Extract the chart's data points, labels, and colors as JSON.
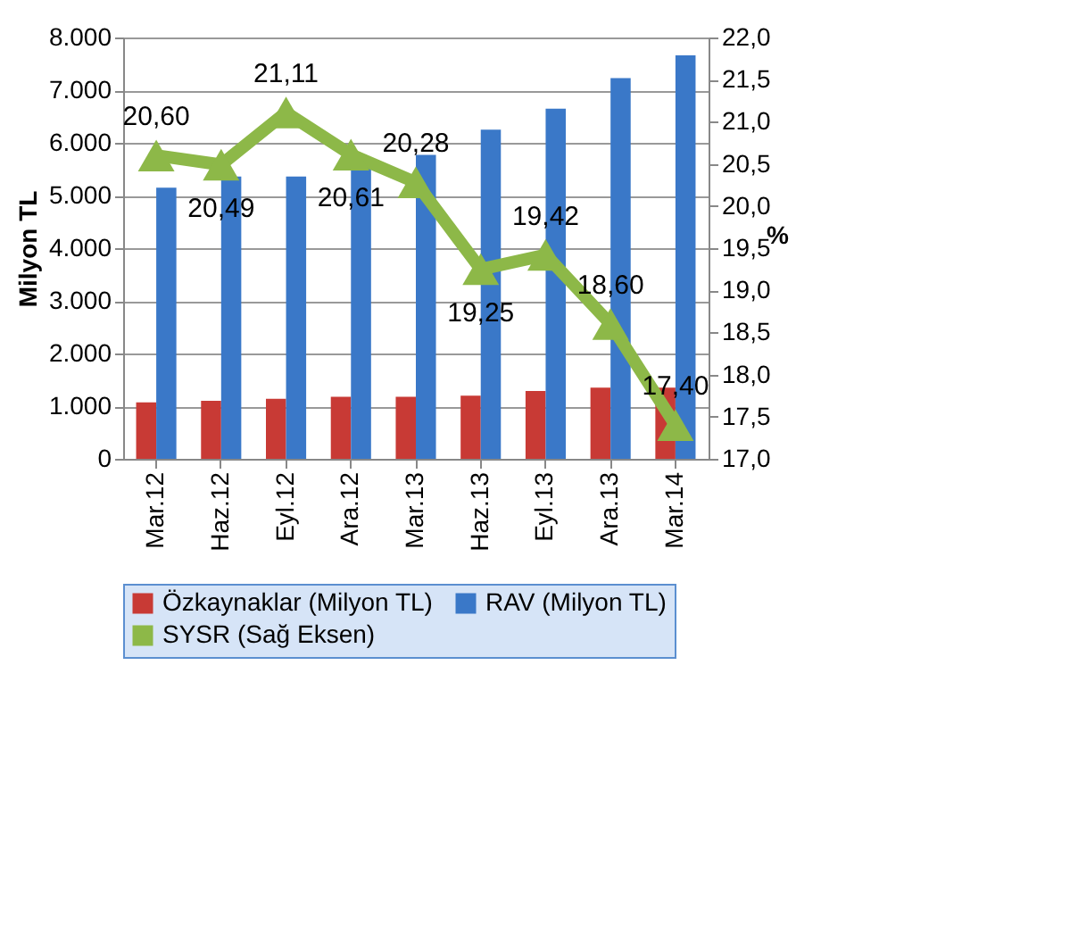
{
  "chart_data": {
    "type": "bar",
    "ylabel": "Milyon TL",
    "y2label": "%",
    "categories": [
      "Mar.12",
      "Haz.12",
      "Eyl.12",
      "Ara.12",
      "Mar.13",
      "Haz.13",
      "Eyl.13",
      "Ara.13",
      "Mar.14"
    ],
    "series": [
      {
        "name": "Özkaynaklar (Milyon TL)",
        "color": "#c83a35",
        "values": [
          1070,
          1100,
          1140,
          1180,
          1180,
          1200,
          1290,
          1350,
          1350
        ]
      },
      {
        "name": "RAV (Milyon TL)",
        "color": "#3a78c8",
        "values": [
          5150,
          5360,
          5360,
          5540,
          5770,
          6250,
          6650,
          7230,
          7660
        ]
      },
      {
        "name": "SYSR (Sağ Eksen)",
        "type": "line",
        "axis": "y2",
        "color": "#8db848",
        "marker": "triangle",
        "values": [
          20.6,
          20.49,
          21.11,
          20.61,
          20.28,
          19.25,
          19.42,
          18.6,
          17.4
        ],
        "value_labels": [
          "20,60",
          "20,49",
          "21,11",
          "20,61",
          "20,28",
          "19,25",
          "19,42",
          "18,60",
          "17,40"
        ]
      }
    ],
    "ylim": [
      0,
      8000
    ],
    "yticks": [
      {
        "value": 0,
        "label": "0"
      },
      {
        "value": 1000,
        "label": "1.000"
      },
      {
        "value": 2000,
        "label": "2.000"
      },
      {
        "value": 3000,
        "label": "3.000"
      },
      {
        "value": 4000,
        "label": "4.000"
      },
      {
        "value": 5000,
        "label": "5.000"
      },
      {
        "value": 6000,
        "label": "6.000"
      },
      {
        "value": 7000,
        "label": "7.000"
      },
      {
        "value": 8000,
        "label": "8.000"
      }
    ],
    "y2lim": [
      17,
      22
    ],
    "y2ticks": [
      {
        "value": 17,
        "label": "17,0"
      },
      {
        "value": 17.5,
        "label": "17,5"
      },
      {
        "value": 18,
        "label": "18,0"
      },
      {
        "value": 18.5,
        "label": "18,5"
      },
      {
        "value": 19,
        "label": "19,0"
      },
      {
        "value": 19.5,
        "label": "19,5"
      },
      {
        "value": 20,
        "label": "20,0"
      },
      {
        "value": 20.5,
        "label": "20,5"
      },
      {
        "value": 21,
        "label": "21,0"
      },
      {
        "value": 21.5,
        "label": "21,5"
      },
      {
        "value": 22,
        "label": "22,0"
      }
    ],
    "grid": "y",
    "legend": "bottom"
  }
}
